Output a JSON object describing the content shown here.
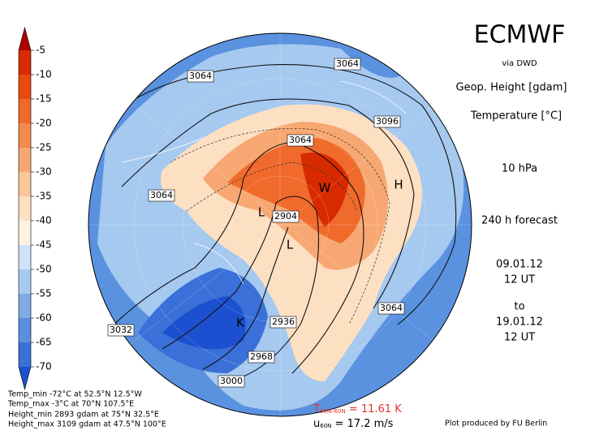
{
  "colorbar": {
    "ticks": [
      -5,
      -10,
      -15,
      -20,
      -25,
      -30,
      -35,
      -40,
      -45,
      -50,
      -55,
      -60,
      -65,
      -70
    ],
    "colors": [
      "#b00000",
      "#d82a00",
      "#ea4a10",
      "#f06a2c",
      "#f48a4c",
      "#f7a872",
      "#fac69a",
      "#fde0c2",
      "#fdf2e2",
      "#cfe3f8",
      "#a6c9f0",
      "#7eaae6",
      "#5a8ede",
      "#3a70d8",
      "#1d50d0"
    ]
  },
  "header": {
    "title": "ECMWF",
    "source": "via DWD",
    "field1": "Geop. Height [gdam]",
    "field2": "Temperature [°C]",
    "level": "10 hPa",
    "forecast": "240 h forecast",
    "start_date": "09.01.12",
    "start_time": "12 UT",
    "to": "to",
    "end_date": "19.01.12",
    "end_time": "12 UT"
  },
  "contour_labels": [
    3064,
    3064,
    3096,
    3064,
    3064,
    2904,
    3064,
    3032,
    2936,
    2968,
    3000
  ],
  "centers": [
    "H",
    "L",
    "L",
    "W",
    "K"
  ],
  "stats": [
    "Temp_min -72°C at 52.5°N 12.5°W",
    "Temp_max -3°C at 70°N 107.5°E",
    "Height_min 2893 gdam at 75°N 32.5°E",
    "Height_max 3109 gdam at 47.5°N 100°E"
  ],
  "indices": {
    "t_symbol": "T",
    "t_sub": "90N–60N",
    "t_value": " = 11.61 K",
    "u_symbol": "u",
    "u_sub": "60N",
    "u_value": " = 17.2 m/s"
  },
  "credit": "Plot produced by FU Berlin"
}
